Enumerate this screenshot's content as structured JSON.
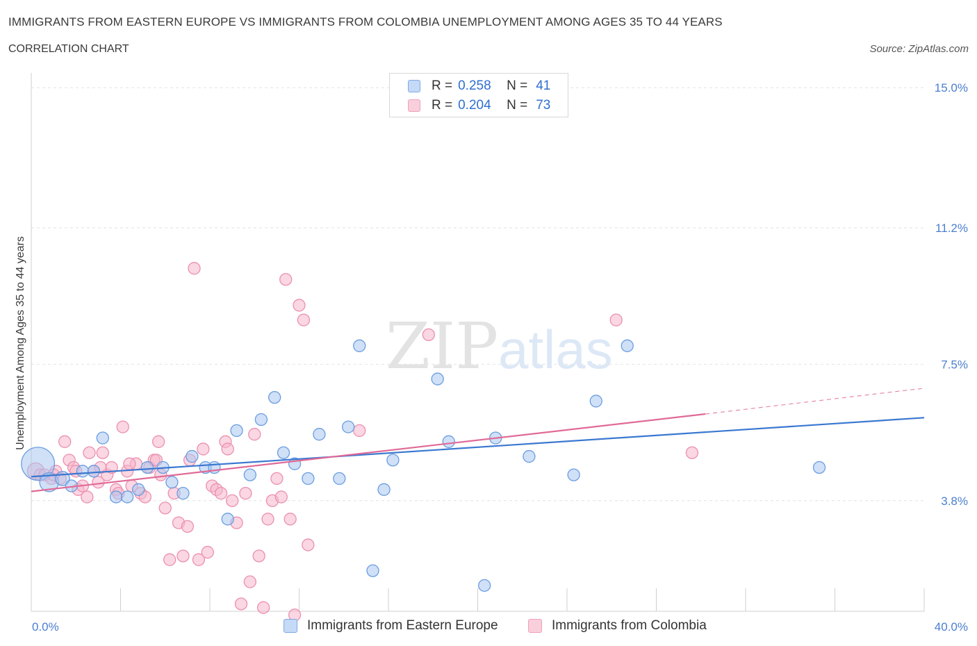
{
  "header": {
    "title": "IMMIGRANTS FROM EASTERN EUROPE VS IMMIGRANTS FROM COLOMBIA UNEMPLOYMENT AMONG AGES 35 TO 44 YEARS",
    "subtitle": "CORRELATION CHART",
    "source": "Source: ZipAtlas.com"
  },
  "watermark": {
    "zip": "ZIP",
    "atlas": "atlas"
  },
  "legend": {
    "rows": [
      {
        "r_label": "R =",
        "r_value": "0.258",
        "n_label": "N =",
        "n_value": "41"
      },
      {
        "r_label": "R =",
        "r_value": "0.204",
        "n_label": "N =",
        "n_value": "73"
      }
    ]
  },
  "colors": {
    "blue_fill": "#a9c7f0",
    "blue_stroke": "#6a9de0",
    "blue_line": "#3a78d0",
    "pink_fill": "#f6b7cb",
    "pink_stroke": "#ec8fb0",
    "pink_line": "#e06a97",
    "tick_text": "#4a7fcf",
    "grid": "#e2e2e2"
  },
  "chart_data": {
    "type": "scatter",
    "title": "IMMIGRANTS FROM EASTERN EUROPE VS IMMIGRANTS FROM COLOMBIA UNEMPLOYMENT AMONG AGES 35 TO 44 YEARS",
    "xlabel": "",
    "ylabel": "Unemployment Among Ages 35 to 44 years",
    "xlim": [
      0,
      40
    ],
    "ylim": [
      0.8,
      15.4
    ],
    "x_tick_labels": [
      "0.0%",
      "40.0%"
    ],
    "y_ticks": [
      3.8,
      7.5,
      11.2,
      15.0
    ],
    "y_tick_labels": [
      "3.8%",
      "7.5%",
      "11.2%",
      "15.0%"
    ],
    "grid": "horizontal dashed",
    "legend_placement": "top-center",
    "series": [
      {
        "name": "Immigrants from Eastern Europe",
        "color": "#a9c7f0",
        "points": [
          [
            0.3,
            4.8,
            28
          ],
          [
            0.8,
            4.3,
            16
          ],
          [
            1.4,
            4.4,
            12
          ],
          [
            1.8,
            4.2,
            10
          ],
          [
            2.3,
            4.6,
            10
          ],
          [
            2.8,
            4.6,
            10
          ],
          [
            3.2,
            5.5,
            10
          ],
          [
            3.8,
            3.9,
            10
          ],
          [
            4.3,
            3.9,
            10
          ],
          [
            4.8,
            4.1,
            10
          ],
          [
            5.2,
            4.7,
            10
          ],
          [
            5.9,
            4.7,
            10
          ],
          [
            6.3,
            4.3,
            10
          ],
          [
            6.8,
            4.0,
            10
          ],
          [
            7.2,
            5.0,
            10
          ],
          [
            7.8,
            4.7,
            10
          ],
          [
            8.2,
            4.7,
            10
          ],
          [
            8.8,
            3.3,
            10
          ],
          [
            9.2,
            5.7,
            10
          ],
          [
            9.8,
            4.5,
            10
          ],
          [
            10.3,
            6.0,
            10
          ],
          [
            10.9,
            6.6,
            10
          ],
          [
            11.3,
            5.1,
            10
          ],
          [
            11.8,
            4.8,
            10
          ],
          [
            12.4,
            4.4,
            10
          ],
          [
            12.9,
            5.6,
            10
          ],
          [
            13.8,
            4.4,
            10
          ],
          [
            14.2,
            5.8,
            10
          ],
          [
            14.7,
            8.0,
            10
          ],
          [
            15.3,
            1.9,
            10
          ],
          [
            15.8,
            4.1,
            10
          ],
          [
            16.2,
            4.9,
            10
          ],
          [
            18.2,
            7.1,
            10
          ],
          [
            18.7,
            5.4,
            10
          ],
          [
            20.3,
            1.5,
            10
          ],
          [
            20.8,
            5.5,
            10
          ],
          [
            22.3,
            5.0,
            10
          ],
          [
            24.3,
            4.5,
            10
          ],
          [
            25.3,
            6.5,
            10
          ],
          [
            26.7,
            8.0,
            10
          ],
          [
            35.3,
            4.7,
            10
          ]
        ]
      },
      {
        "name": "Immigrants from Colombia",
        "color": "#f6b7cb",
        "points": [
          [
            0.2,
            4.6,
            14
          ],
          [
            0.4,
            4.5,
            10
          ],
          [
            0.6,
            4.5,
            10
          ],
          [
            0.9,
            4.4,
            10
          ],
          [
            1.1,
            4.6,
            10
          ],
          [
            1.3,
            4.4,
            10
          ],
          [
            1.5,
            5.4,
            10
          ],
          [
            1.7,
            4.9,
            10
          ],
          [
            1.9,
            4.7,
            10
          ],
          [
            2.1,
            4.1,
            10
          ],
          [
            2.3,
            4.2,
            10
          ],
          [
            2.5,
            3.9,
            10
          ],
          [
            2.6,
            5.1,
            10
          ],
          [
            2.8,
            4.6,
            10
          ],
          [
            3.0,
            4.3,
            10
          ],
          [
            3.2,
            5.1,
            10
          ],
          [
            3.4,
            4.5,
            10
          ],
          [
            3.6,
            4.7,
            10
          ],
          [
            3.8,
            4.1,
            10
          ],
          [
            3.9,
            4.0,
            10
          ],
          [
            4.1,
            5.8,
            10
          ],
          [
            4.3,
            4.6,
            10
          ],
          [
            4.5,
            4.2,
            10
          ],
          [
            4.7,
            4.8,
            10
          ],
          [
            4.9,
            4.0,
            10
          ],
          [
            5.1,
            3.9,
            10
          ],
          [
            5.3,
            4.7,
            10
          ],
          [
            5.5,
            4.9,
            10
          ],
          [
            5.7,
            5.4,
            10
          ],
          [
            5.8,
            4.5,
            10
          ],
          [
            6.0,
            3.6,
            10
          ],
          [
            6.2,
            2.2,
            10
          ],
          [
            6.4,
            4.0,
            10
          ],
          [
            6.6,
            3.2,
            10
          ],
          [
            6.8,
            2.3,
            10
          ],
          [
            7.0,
            3.1,
            10
          ],
          [
            7.1,
            4.9,
            10
          ],
          [
            7.3,
            10.1,
            10
          ],
          [
            7.5,
            2.2,
            10
          ],
          [
            7.7,
            5.2,
            10
          ],
          [
            7.9,
            2.4,
            10
          ],
          [
            8.1,
            4.2,
            10
          ],
          [
            8.3,
            4.1,
            10
          ],
          [
            8.5,
            4.0,
            10
          ],
          [
            8.7,
            5.4,
            10
          ],
          [
            8.8,
            5.2,
            10
          ],
          [
            9.0,
            3.8,
            10
          ],
          [
            9.2,
            3.2,
            10
          ],
          [
            9.4,
            1.0,
            10
          ],
          [
            9.6,
            4.0,
            10
          ],
          [
            9.8,
            1.6,
            10
          ],
          [
            10.0,
            5.6,
            10
          ],
          [
            10.2,
            2.3,
            10
          ],
          [
            10.4,
            0.9,
            10
          ],
          [
            10.6,
            3.3,
            10
          ],
          [
            10.8,
            3.8,
            10
          ],
          [
            11.0,
            4.4,
            10
          ],
          [
            11.2,
            3.9,
            10
          ],
          [
            11.4,
            9.8,
            10
          ],
          [
            11.6,
            3.3,
            10
          ],
          [
            11.8,
            0.7,
            10
          ],
          [
            12.0,
            9.1,
            10
          ],
          [
            12.2,
            8.7,
            10
          ],
          [
            12.4,
            2.6,
            10
          ],
          [
            14.7,
            5.7,
            10
          ],
          [
            17.8,
            8.3,
            10
          ],
          [
            26.2,
            8.7,
            10
          ],
          [
            29.6,
            5.1,
            10
          ],
          [
            1.0,
            4.5,
            10
          ],
          [
            2.0,
            4.6,
            10
          ],
          [
            3.1,
            4.7,
            10
          ],
          [
            4.4,
            4.8,
            10
          ],
          [
            5.6,
            4.9,
            10
          ]
        ]
      }
    ],
    "trend_lines": [
      {
        "series": "Immigrants from Eastern Europe",
        "x": [
          0,
          40
        ],
        "y": [
          4.45,
          6.05
        ]
      },
      {
        "series": "Immigrants from Colombia",
        "x": [
          0,
          30.2
        ],
        "y": [
          4.05,
          6.15
        ],
        "dashed_extension": {
          "x": [
            30.2,
            40
          ],
          "y": [
            6.15,
            6.85
          ]
        }
      }
    ]
  }
}
